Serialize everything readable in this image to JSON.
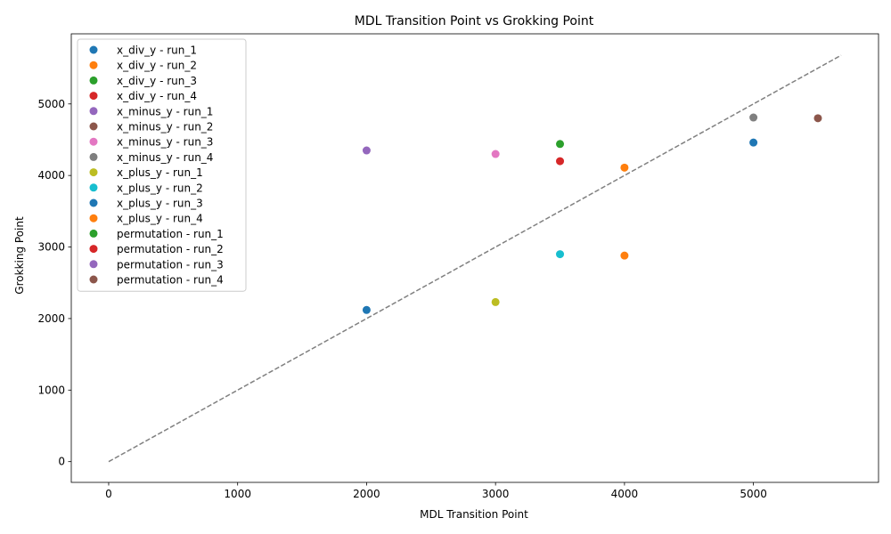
{
  "chart_data": {
    "type": "scatter",
    "title": "MDL Transition Point vs Grokking Point",
    "xlabel": "MDL Transition Point",
    "ylabel": "Grokking Point",
    "xlim": [
      -290,
      5970
    ],
    "ylim": [
      -290,
      5980
    ],
    "xticks": [
      0,
      1000,
      2000,
      3000,
      4000,
      5000
    ],
    "yticks": [
      0,
      1000,
      2000,
      3000,
      4000,
      5000
    ],
    "grid": false,
    "legend_position": "upper-left",
    "reference_line": {
      "style": "dashed",
      "color": "#808080",
      "from": [
        0,
        0
      ],
      "to": [
        5680,
        5680
      ]
    },
    "series": [
      {
        "name": "x_div_y - run_1",
        "color": "#1f77b4",
        "x": [
          5000
        ],
        "y": [
          4460
        ]
      },
      {
        "name": "x_div_y - run_2",
        "color": "#ff7f0e",
        "x": [
          4000
        ],
        "y": [
          4110
        ]
      },
      {
        "name": "x_div_y - run_3",
        "color": "#2ca02c",
        "x": [
          3500
        ],
        "y": [
          4440
        ]
      },
      {
        "name": "x_div_y - run_4",
        "color": "#d62728",
        "x": [
          3500
        ],
        "y": [
          4200
        ]
      },
      {
        "name": "x_minus_y - run_1",
        "color": "#9467bd",
        "x": [
          2000
        ],
        "y": [
          4350
        ]
      },
      {
        "name": "x_minus_y - run_2",
        "color": "#8c564b",
        "x": [
          5500
        ],
        "y": [
          4800
        ]
      },
      {
        "name": "x_minus_y - run_3",
        "color": "#e377c2",
        "x": [
          3000
        ],
        "y": [
          4300
        ]
      },
      {
        "name": "x_minus_y - run_4",
        "color": "#7f7f7f",
        "x": [
          5000
        ],
        "y": [
          4810
        ]
      },
      {
        "name": "x_plus_y - run_1",
        "color": "#bcbd22",
        "x": [
          3000
        ],
        "y": [
          2230
        ]
      },
      {
        "name": "x_plus_y - run_2",
        "color": "#17becf",
        "x": [
          3500
        ],
        "y": [
          2900
        ]
      },
      {
        "name": "x_plus_y - run_3",
        "color": "#1f77b4",
        "x": [
          2000
        ],
        "y": [
          2120
        ]
      },
      {
        "name": "x_plus_y - run_4",
        "color": "#ff7f0e",
        "x": [
          4000
        ],
        "y": [
          2880
        ]
      },
      {
        "name": "permutation - run_1",
        "color": "#2ca02c",
        "x": [],
        "y": []
      },
      {
        "name": "permutation - run_2",
        "color": "#d62728",
        "x": [],
        "y": []
      },
      {
        "name": "permutation - run_3",
        "color": "#9467bd",
        "x": [],
        "y": []
      },
      {
        "name": "permutation - run_4",
        "color": "#8c564b",
        "x": [],
        "y": []
      }
    ]
  }
}
